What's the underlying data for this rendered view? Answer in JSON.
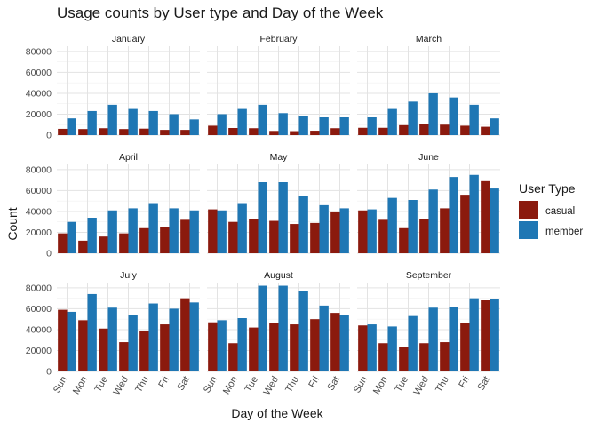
{
  "chart_data": {
    "type": "bar",
    "title": "Usage counts by User type and Day of the Week",
    "xlabel": "Day of the Week",
    "ylabel": "Count",
    "ylim": [
      0,
      85000
    ],
    "y_ticks": [
      "0",
      "20000",
      "40000",
      "60000",
      "80000"
    ],
    "y_tick_values": [
      0,
      20000,
      40000,
      60000,
      80000
    ],
    "categories": [
      "Sun",
      "Mon",
      "Tue",
      "Wed",
      "Thu",
      "Fri",
      "Sat"
    ],
    "grid": true,
    "legend": {
      "title": "User Type",
      "placement": "right",
      "entries": [
        {
          "name": "casual",
          "color": "#8B1A0E"
        },
        {
          "name": "member",
          "color": "#1F77B4"
        }
      ]
    },
    "panels": [
      {
        "title": "January",
        "series": [
          {
            "name": "casual",
            "values": [
              6000,
              5800,
              6600,
              5800,
              6200,
              5000,
              5000
            ]
          },
          {
            "name": "member",
            "values": [
              16000,
              23000,
              29000,
              25000,
              23000,
              20000,
              15000
            ]
          }
        ]
      },
      {
        "title": "February",
        "series": [
          {
            "name": "casual",
            "values": [
              9000,
              6800,
              6600,
              4000,
              3800,
              4200,
              6600
            ]
          },
          {
            "name": "member",
            "values": [
              20000,
              25000,
              29000,
              21000,
              18000,
              17000,
              17000
            ]
          }
        ]
      },
      {
        "title": "March",
        "series": [
          {
            "name": "casual",
            "values": [
              7000,
              7000,
              9500,
              11000,
              10000,
              9000,
              8000
            ]
          },
          {
            "name": "member",
            "values": [
              17000,
              25000,
              32000,
              40000,
              36000,
              29000,
              16000
            ]
          }
        ]
      },
      {
        "title": "April",
        "series": [
          {
            "name": "casual",
            "values": [
              19000,
              12000,
              16000,
              19000,
              24000,
              25000,
              32000
            ]
          },
          {
            "name": "member",
            "values": [
              30000,
              34000,
              41000,
              43000,
              48000,
              43000,
              41000
            ]
          }
        ]
      },
      {
        "title": "May",
        "series": [
          {
            "name": "casual",
            "values": [
              42000,
              30000,
              33000,
              31000,
              28000,
              29000,
              40000
            ]
          },
          {
            "name": "member",
            "values": [
              41000,
              48000,
              68000,
              68000,
              55000,
              46000,
              43000
            ]
          }
        ]
      },
      {
        "title": "June",
        "series": [
          {
            "name": "casual",
            "values": [
              41000,
              32000,
              24000,
              33000,
              43000,
              56000,
              69000
            ]
          },
          {
            "name": "member",
            "values": [
              42000,
              53000,
              51000,
              61000,
              73000,
              75000,
              62000
            ]
          }
        ]
      },
      {
        "title": "July",
        "series": [
          {
            "name": "casual",
            "values": [
              59000,
              49000,
              41000,
              28000,
              39000,
              45000,
              70000
            ]
          },
          {
            "name": "member",
            "values": [
              57000,
              74000,
              61000,
              54000,
              65000,
              60000,
              66000
            ]
          }
        ]
      },
      {
        "title": "August",
        "series": [
          {
            "name": "casual",
            "values": [
              47000,
              27000,
              42000,
              46000,
              45000,
              50000,
              56000
            ]
          },
          {
            "name": "member",
            "values": [
              49000,
              51000,
              82000,
              82000,
              77000,
              63000,
              54000
            ]
          }
        ]
      },
      {
        "title": "September",
        "series": [
          {
            "name": "casual",
            "values": [
              44000,
              27000,
              23000,
              27000,
              28000,
              46000,
              68000
            ]
          },
          {
            "name": "member",
            "values": [
              45000,
              43000,
              53000,
              61000,
              62000,
              70000,
              69000
            ]
          }
        ]
      }
    ]
  }
}
